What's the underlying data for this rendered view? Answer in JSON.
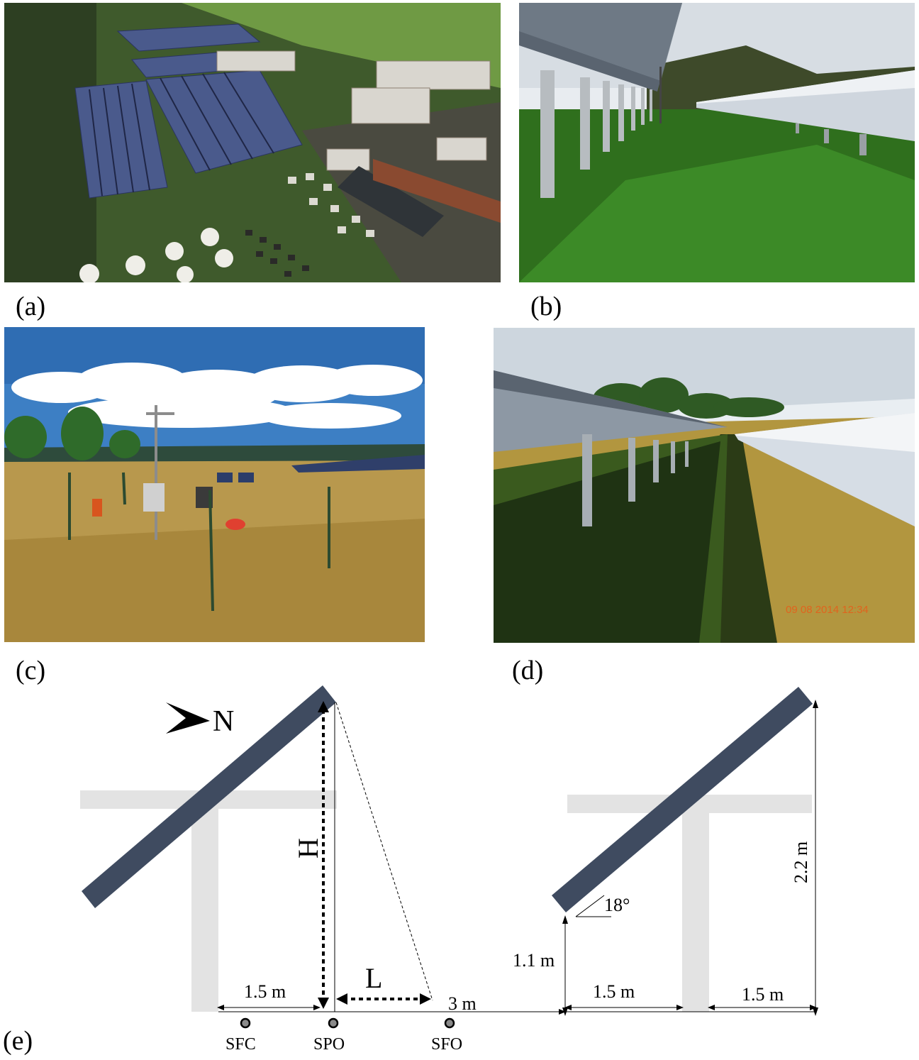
{
  "panel_labels": {
    "a": "(a)",
    "b": "(b)",
    "c": "(c)",
    "d": "(d)",
    "e": "(e)"
  },
  "photo_d": {
    "timestamp": "09 08 2014 12:34"
  },
  "diagram": {
    "north_label": "N",
    "height_label": "H",
    "length_label": "L",
    "angle_label": "18°",
    "dim_panel_top": "2.2 m",
    "dim_panel_bottom": "1.1 m",
    "dim_left_gap": "1.5 m",
    "dim_middle_gap": "3 m",
    "dim_right_gap_1": "1.5 m",
    "dim_right_gap_2": "1.5 m",
    "sensors": [
      "SFC",
      "SPO",
      "SFO"
    ]
  },
  "colors": {
    "panel_fill": "#3f4b60",
    "support_fill": "#e3e3e3",
    "sensor_fill": "#8a8a8a",
    "timestamp_color": "#e0641e"
  }
}
